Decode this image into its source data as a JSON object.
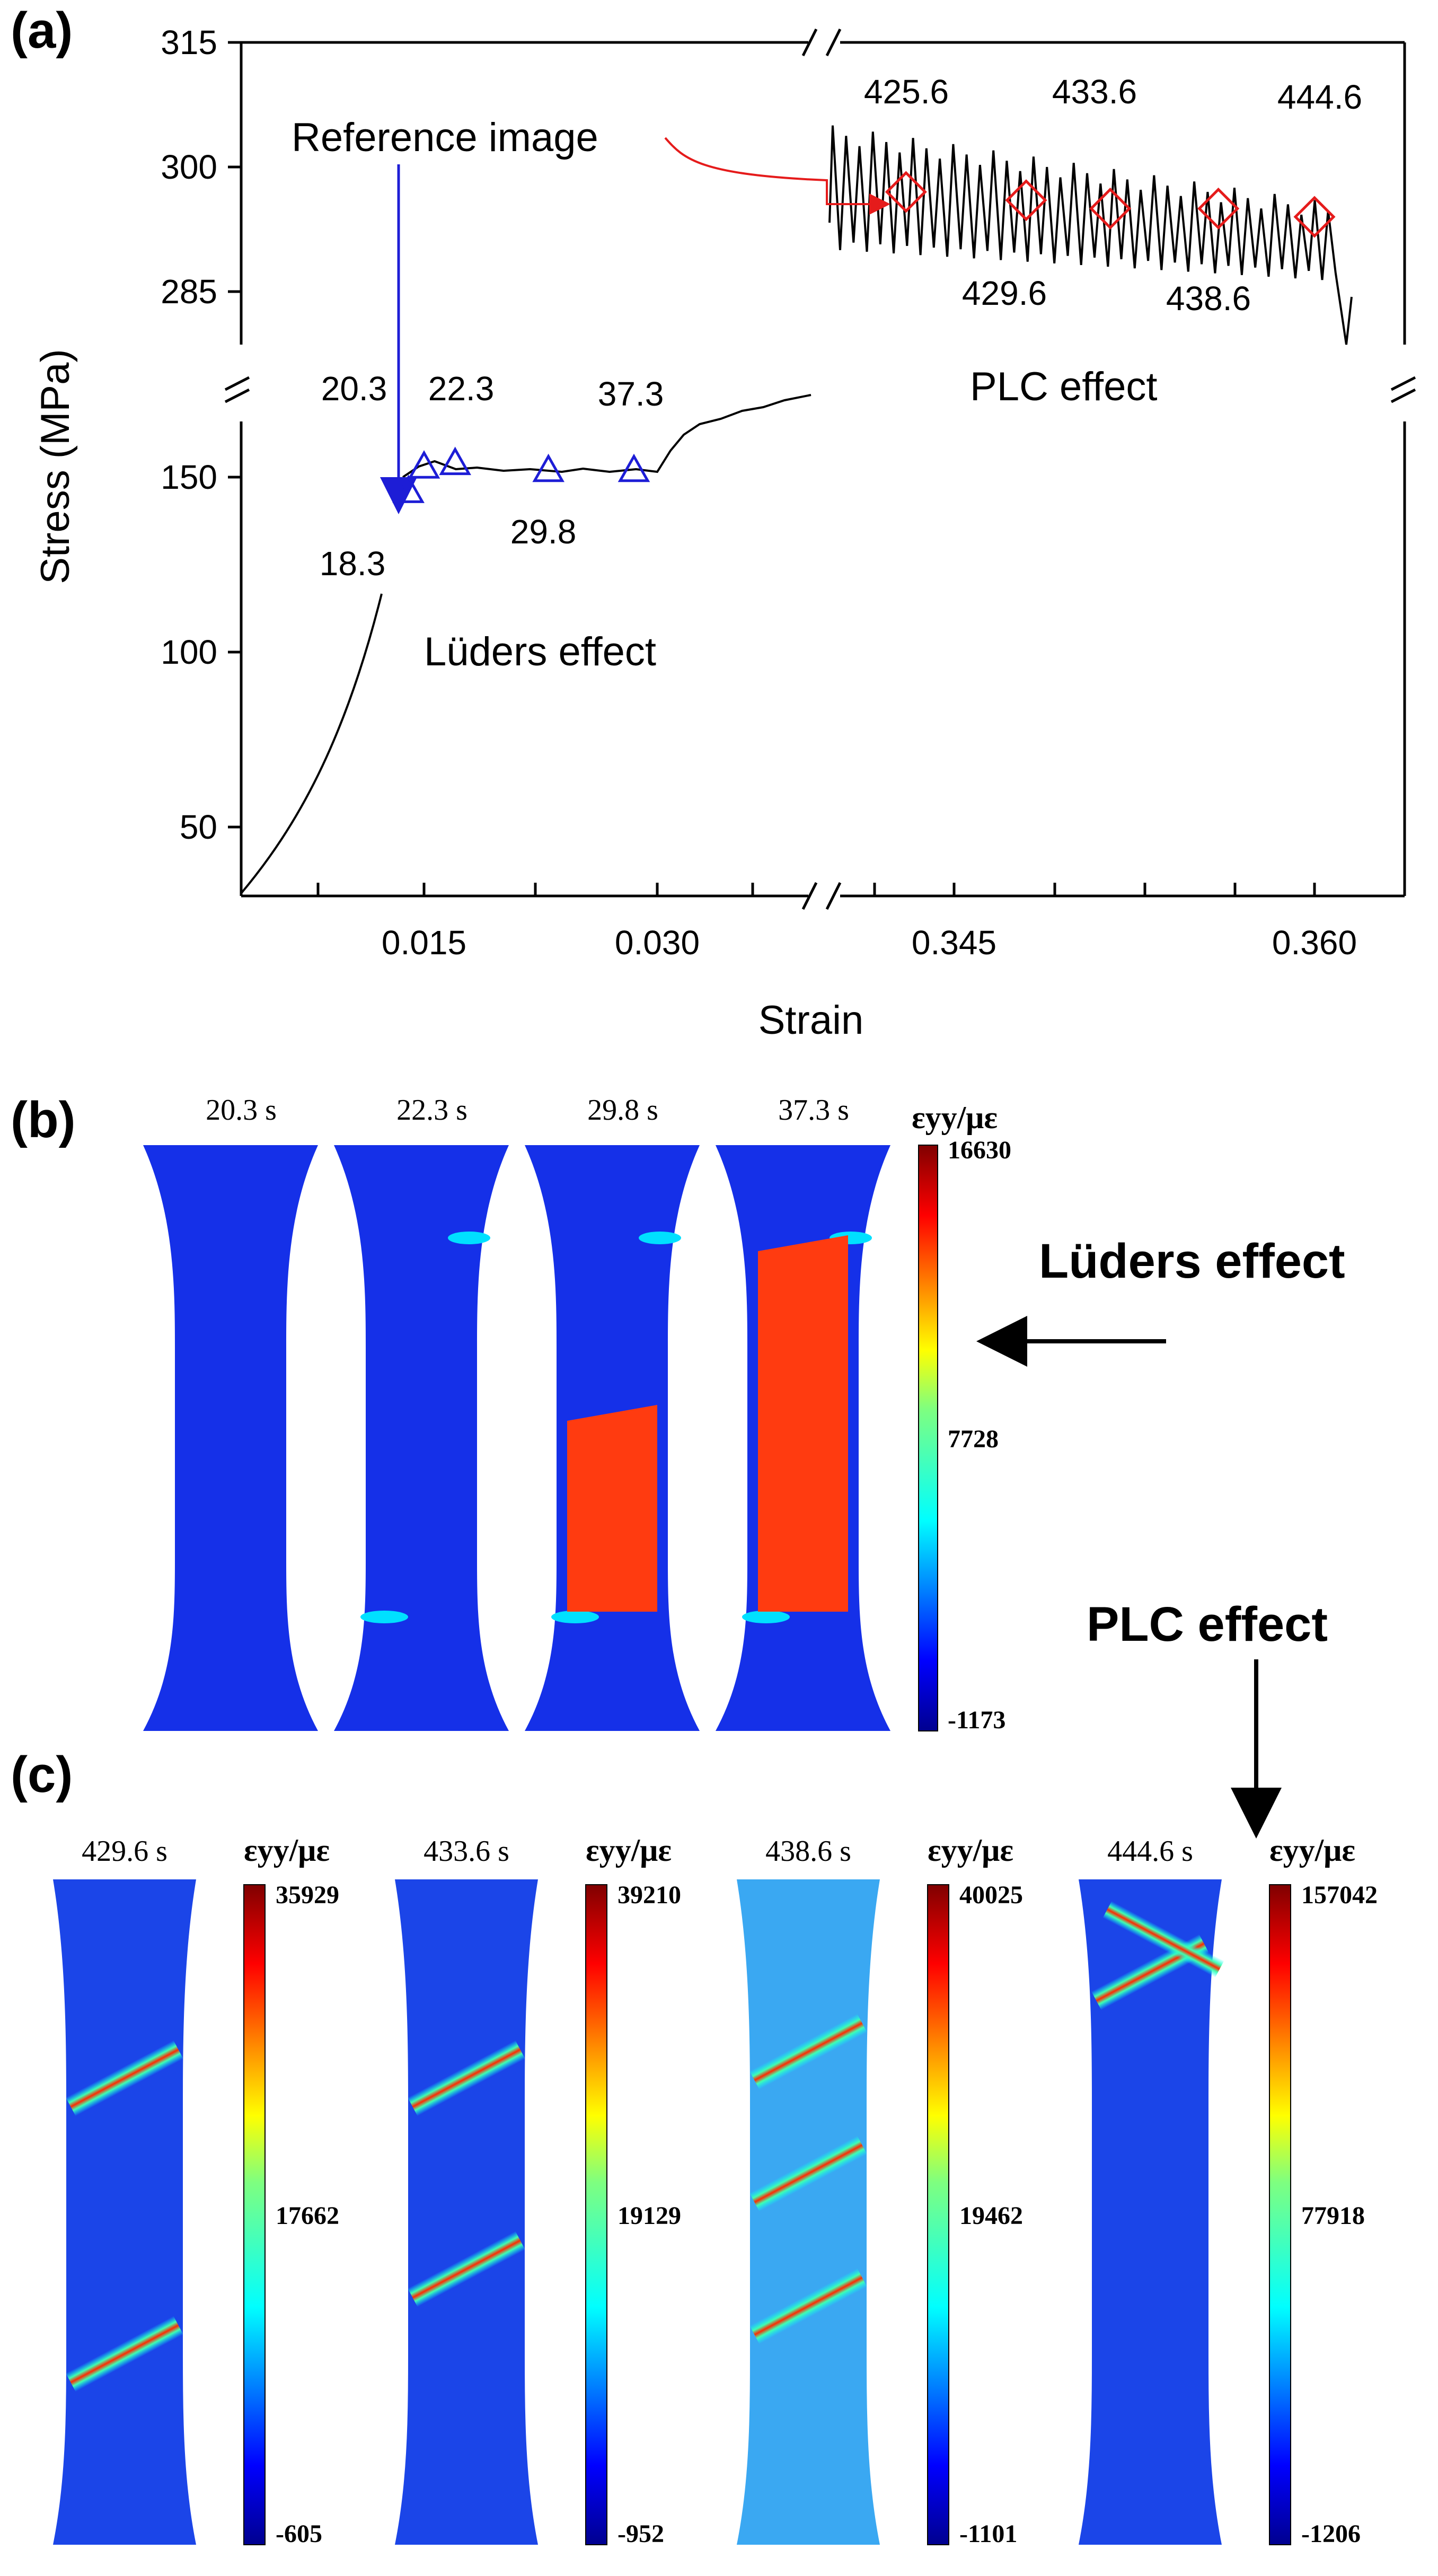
{
  "panel_labels": {
    "a": "(a)",
    "b": "(b)",
    "c": "(c)"
  },
  "colors": {
    "axis": "#000000",
    "luders_marker": "#1d1dd6",
    "plc_marker": "#e51b1b",
    "arrow_blue": "#1d1dd6",
    "arrow_red": "#e51b1b"
  },
  "chart_data": {
    "type": "line",
    "title": "",
    "xlabel": "Strain",
    "ylabel": "Stress (MPa)",
    "broken_axes": true,
    "left_x_ticks": [
      "0.015",
      "0.030"
    ],
    "right_x_ticks": [
      "0.345",
      "0.360"
    ],
    "y_ticks_lower": [
      "50",
      "100",
      "150"
    ],
    "y_ticks_upper": [
      "285",
      "300",
      "315"
    ],
    "luders_markers": [
      {
        "label": "18.3",
        "strain": 0.014,
        "stress": 146
      },
      {
        "label": "20.3",
        "strain": 0.015,
        "stress": 153
      },
      {
        "label": "22.3",
        "strain": 0.017,
        "stress": 154
      },
      {
        "label": "29.8",
        "strain": 0.023,
        "stress": 152
      },
      {
        "label": "37.3",
        "strain": 0.0285,
        "stress": 152
      }
    ],
    "plc_markers": [
      {
        "label": "425.6",
        "strain": 0.343,
        "stress": 297
      },
      {
        "label": "429.6",
        "strain": 0.348,
        "stress": 296
      },
      {
        "label": "433.6",
        "strain": 0.3515,
        "stress": 295
      },
      {
        "label": "438.6",
        "strain": 0.356,
        "stress": 295
      },
      {
        "label": "444.6",
        "strain": 0.36,
        "stress": 294
      }
    ],
    "annotations": {
      "reference_image": "Reference image",
      "plc_effect": "PLC effect",
      "luders_effect": "Lüders effect"
    }
  },
  "panel_b": {
    "times": [
      "20.3 s",
      "22.3 s",
      "29.8 s",
      "37.3 s"
    ],
    "colorbar": {
      "label": "εyy/με",
      "max": "16630",
      "mid": "7728",
      "min": "-1173"
    },
    "arrow_label": "Lüders effect"
  },
  "panel_c": {
    "arrow_label": "PLC effect",
    "specimens": [
      {
        "time": "429.6 s",
        "cb_label": "εyy/με",
        "max": "35929",
        "mid": "17662",
        "min": "-605"
      },
      {
        "time": "433.6 s",
        "cb_label": "εyy/με",
        "max": "39210",
        "mid": "19129",
        "min": "-952"
      },
      {
        "time": "438.6 s",
        "cb_label": "εyy/με",
        "max": "40025",
        "mid": "19462",
        "min": "-1101"
      },
      {
        "time": "444.6 s",
        "cb_label": "εyy/με",
        "max": "157042",
        "mid": "77918",
        "min": "-1206"
      }
    ]
  }
}
